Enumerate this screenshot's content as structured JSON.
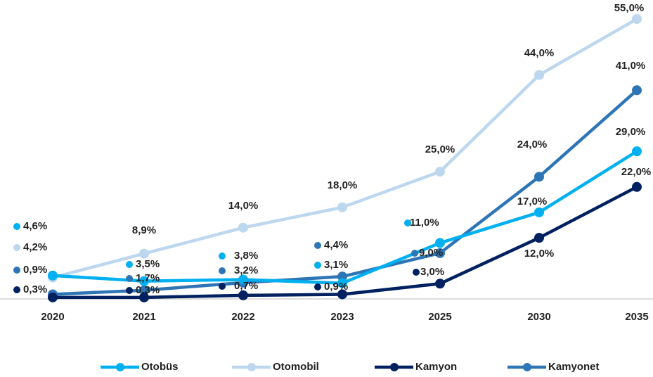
{
  "chart_data": {
    "type": "line",
    "categories": [
      "2020",
      "2021",
      "2022",
      "2023",
      "2025",
      "2030",
      "2035"
    ],
    "series": [
      {
        "name": "Otobüs",
        "color": "#00b0f0",
        "values": [
          4.6,
          3.5,
          3.8,
          3.1,
          11.0,
          17.0,
          29.0
        ],
        "value_labels": [
          "4,6%",
          "3,5%",
          "3,8%",
          "3,1%",
          "11,0%",
          "17,0%",
          "29,0%"
        ]
      },
      {
        "name": "Otomobil",
        "color": "#bdd7ee",
        "values": [
          4.2,
          8.9,
          14.0,
          18.0,
          25.0,
          44.0,
          55.0
        ],
        "value_labels": [
          "4,2%",
          "8,9%",
          "14,0%",
          "18,0%",
          "25,0%",
          "44,0%",
          "55,0%"
        ]
      },
      {
        "name": "Kamyon",
        "color": "#002060",
        "values": [
          0.3,
          0.3,
          0.7,
          0.9,
          3.0,
          12.0,
          22.0
        ],
        "value_labels": [
          "0,3%",
          "0,3%",
          "0,7%",
          "0,9%",
          "3,0%",
          "12,0%",
          "22,0%"
        ]
      },
      {
        "name": "Kamyonet",
        "color": "#2e75b6",
        "values": [
          0.9,
          1.7,
          3.2,
          4.4,
          9.0,
          24.0,
          41.0
        ],
        "value_labels": [
          "0,9%",
          "1,7%",
          "3,2%",
          "4,4%",
          "9,0%",
          "24,0%",
          "41,0%"
        ]
      }
    ]
  }
}
